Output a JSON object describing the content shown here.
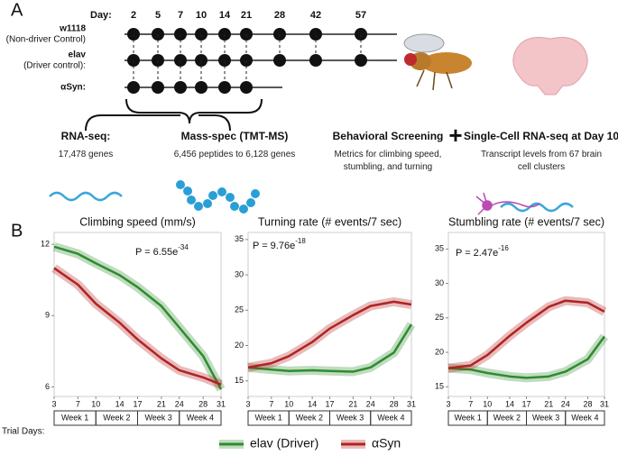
{
  "panel_a": {
    "label": "A",
    "day_label": "Day:",
    "days": [
      2,
      5,
      7,
      10,
      14,
      21,
      28,
      42,
      57
    ],
    "rows": [
      {
        "name": "w1118",
        "note": "(Non-driver Control)",
        "days": [
          2,
          5,
          7,
          10,
          14,
          21,
          28,
          42,
          57
        ]
      },
      {
        "name": "elav",
        "note": "(Driver control):",
        "days": [
          2,
          5,
          7,
          10,
          14,
          21,
          28,
          42,
          57
        ]
      },
      {
        "name": "αSyn:",
        "days": [
          2,
          5,
          7,
          10,
          14,
          21
        ]
      }
    ],
    "methods": [
      {
        "title": "RNA-seq:",
        "detail": "17,478 genes"
      },
      {
        "title": "Mass-spec (TMT-MS)",
        "detail": "6,456 peptides to 6,128 genes"
      },
      {
        "title": "Behavioral Screening",
        "detail": "Metrics for climbing speed, stumbling, and turning"
      },
      {
        "title": "Single-Cell RNA-seq at Day 10",
        "detail": "Transcript levels from 67 brain cell clusters"
      }
    ],
    "plus": "+"
  },
  "panel_b": {
    "label": "B",
    "x_label": "Trial Days:"
  },
  "chart_data": [
    {
      "type": "line",
      "title": "Climbing speed (mm/s)",
      "p_label": "P = 6.55e",
      "p_exponent": "-34",
      "x": [
        3,
        7,
        10,
        14,
        17,
        21,
        24,
        28,
        31
      ],
      "xlim": [
        3,
        31
      ],
      "xticks": [
        3,
        7,
        10,
        14,
        17,
        21,
        24,
        28,
        31
      ],
      "ylim": [
        5.6,
        12.5
      ],
      "yticks": [
        6,
        9,
        12
      ],
      "weeks": [
        "Week 1",
        "Week 2",
        "Week 3",
        "Week 4"
      ],
      "series": [
        {
          "name": "elav (Driver)",
          "color": "#2e8b2e",
          "values": [
            11.9,
            11.6,
            11.2,
            10.7,
            10.2,
            9.4,
            8.5,
            7.3,
            5.9
          ]
        },
        {
          "name": "αSyn",
          "color": "#b22222",
          "values": [
            11.0,
            10.3,
            9.5,
            8.7,
            8.0,
            7.2,
            6.7,
            6.4,
            6.1
          ]
        }
      ]
    },
    {
      "type": "line",
      "title": "Turning rate (# events/7 sec)",
      "p_label": "P = 9.76e",
      "p_exponent": "-18",
      "x": [
        3,
        7,
        10,
        14,
        17,
        21,
        24,
        28,
        31
      ],
      "xlim": [
        3,
        31
      ],
      "xticks": [
        3,
        7,
        10,
        14,
        17,
        21,
        24,
        28,
        31
      ],
      "ylim": [
        12.8,
        36
      ],
      "yticks": [
        15,
        20,
        25,
        30,
        35
      ],
      "weeks": [
        "Week 1",
        "Week 2",
        "Week 3",
        "Week 4"
      ],
      "series": [
        {
          "name": "elav (Driver)",
          "color": "#2e8b2e",
          "values": [
            16.9,
            16.6,
            16.4,
            16.5,
            16.4,
            16.3,
            16.9,
            19.0,
            23.0
          ]
        },
        {
          "name": "αSyn",
          "color": "#b22222",
          "values": [
            16.9,
            17.5,
            18.5,
            20.5,
            22.4,
            24.3,
            25.6,
            26.2,
            25.8
          ]
        }
      ]
    },
    {
      "type": "line",
      "title": "Stumbling rate (# events/7 sec)",
      "p_label": "P = 2.47e",
      "p_exponent": "-16",
      "x": [
        3,
        7,
        10,
        14,
        17,
        21,
        24,
        28,
        31
      ],
      "xlim": [
        3,
        31
      ],
      "xticks": [
        3,
        7,
        10,
        14,
        17,
        21,
        24,
        28,
        31
      ],
      "ylim": [
        13.6,
        37.4
      ],
      "yticks": [
        15,
        20,
        25,
        30,
        35
      ],
      "weeks": [
        "Week 1",
        "Week 2",
        "Week 3",
        "Week 4"
      ],
      "series": [
        {
          "name": "elav (Driver)",
          "color": "#2e8b2e",
          "values": [
            17.7,
            17.5,
            17.0,
            16.5,
            16.3,
            16.5,
            17.2,
            19.0,
            22.3
          ]
        },
        {
          "name": "αSyn",
          "color": "#b22222",
          "values": [
            17.7,
            18.1,
            19.6,
            22.4,
            24.3,
            26.6,
            27.5,
            27.2,
            25.9
          ]
        }
      ]
    }
  ]
}
